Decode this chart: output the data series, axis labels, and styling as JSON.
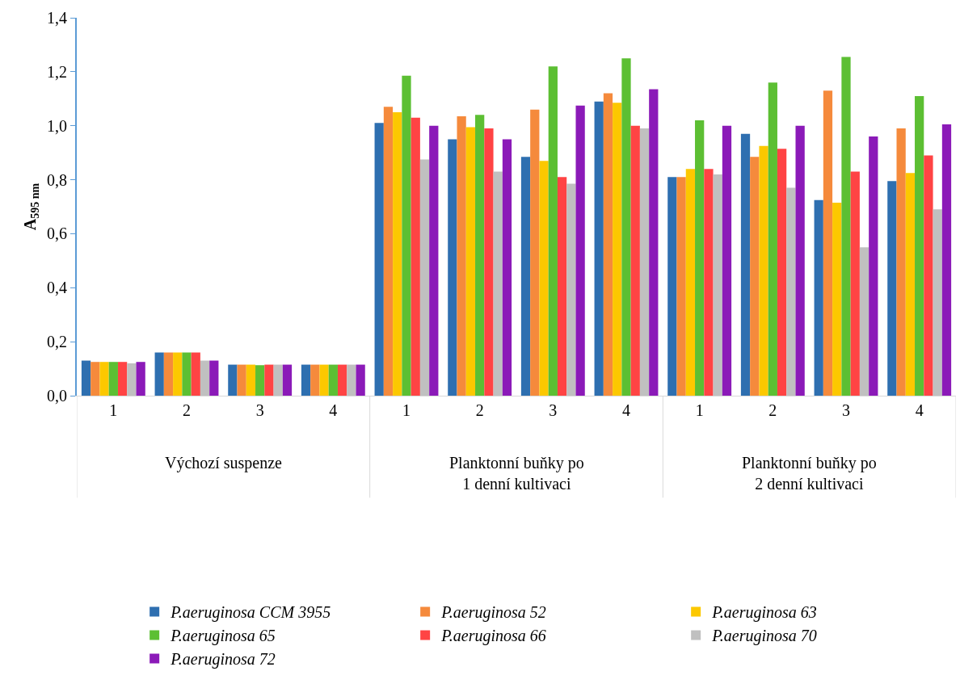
{
  "chart_data": {
    "type": "bar",
    "ylabel": "A$_{595 nm}$",
    "categories": [
      "1",
      "2",
      "3",
      "4",
      "1",
      "2",
      "3",
      "4",
      "1",
      "2",
      "3",
      "4"
    ],
    "annotations": [
      "Výchozí suspenze",
      "Planktonní buňky po\n1 denní kultivaci",
      "Planktonní buňky po\n2 denní kultivaci"
    ],
    "series": [
      {
        "name": "P.aeruginosa CCM 3955",
        "color": "#2e6fb0",
        "values": [
          0.13,
          0.16,
          0.115,
          0.115,
          1.01,
          0.95,
          0.885,
          1.09,
          0.81,
          0.97,
          0.725,
          0.795
        ]
      },
      {
        "name": "P.aeruginosa 52",
        "color": "#f58a3c",
        "values": [
          0.125,
          0.16,
          0.115,
          0.115,
          1.07,
          1.035,
          1.06,
          1.12,
          0.81,
          0.885,
          1.13,
          0.99
        ]
      },
      {
        "name": "P.aeruginosa 63",
        "color": "#fcc800",
        "values": [
          0.125,
          0.16,
          0.115,
          0.115,
          1.05,
          0.995,
          0.87,
          1.085,
          0.84,
          0.925,
          0.715,
          0.825
        ]
      },
      {
        "name": "P.aeruginosa 65",
        "color": "#5cbf33",
        "values": [
          0.125,
          0.16,
          0.113,
          0.115,
          1.185,
          1.04,
          1.22,
          1.25,
          1.02,
          1.16,
          1.255,
          1.11
        ]
      },
      {
        "name": "P.aeruginosa 66",
        "color": "#ff4444",
        "values": [
          0.125,
          0.16,
          0.115,
          0.115,
          1.03,
          0.99,
          0.81,
          1.0,
          0.84,
          0.915,
          0.83,
          0.89
        ]
      },
      {
        "name": "P.aeruginosa 70",
        "color": "#c0c0c0",
        "values": [
          0.12,
          0.13,
          0.115,
          0.115,
          0.875,
          0.83,
          0.785,
          0.99,
          0.82,
          0.77,
          0.55,
          0.69
        ]
      },
      {
        "name": "P.aeruginosa 72",
        "color": "#8b1ab8",
        "values": [
          0.125,
          0.13,
          0.115,
          0.115,
          1.0,
          0.95,
          1.075,
          1.135,
          1.0,
          1.0,
          0.96,
          1.005
        ]
      }
    ],
    "ylim": [
      0,
      1.4
    ],
    "yticks": [
      {
        "value": 0,
        "label": "0,0"
      },
      {
        "value": 0.2,
        "label": "0,2"
      },
      {
        "value": 0.4,
        "label": "0,4"
      },
      {
        "value": 0.6,
        "label": "0,6"
      },
      {
        "value": 0.8,
        "label": "0,8"
      },
      {
        "value": 1.0,
        "label": "1,0"
      },
      {
        "value": 1.2,
        "label": "1,2"
      },
      {
        "value": 1.4,
        "label": "1,4"
      }
    ],
    "grid": false,
    "legend": "bottom"
  }
}
